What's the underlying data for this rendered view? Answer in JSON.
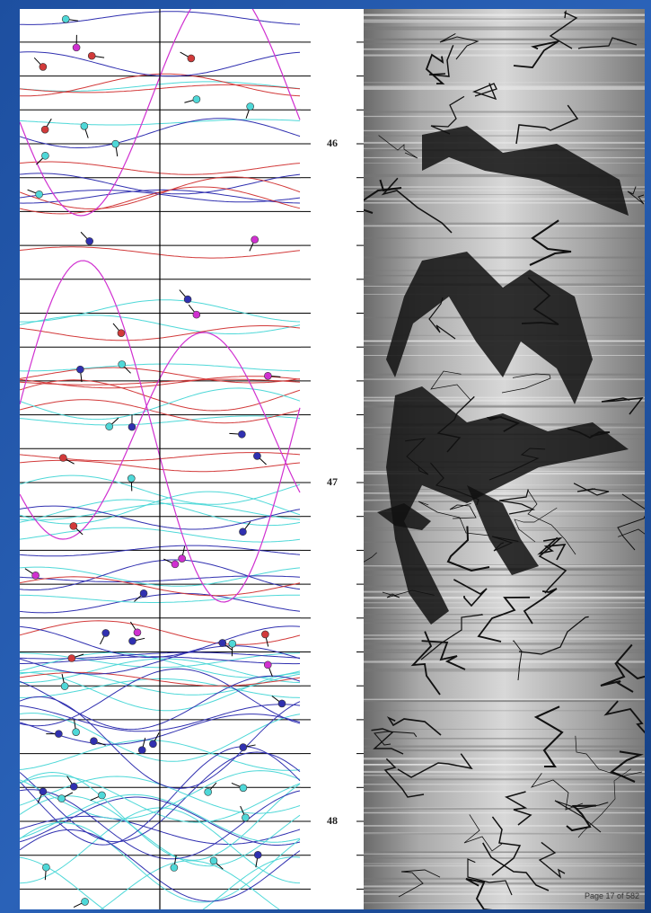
{
  "depth_labels": [
    "46",
    "47",
    "48"
  ],
  "page_label": "Page 17 of 582"
}
